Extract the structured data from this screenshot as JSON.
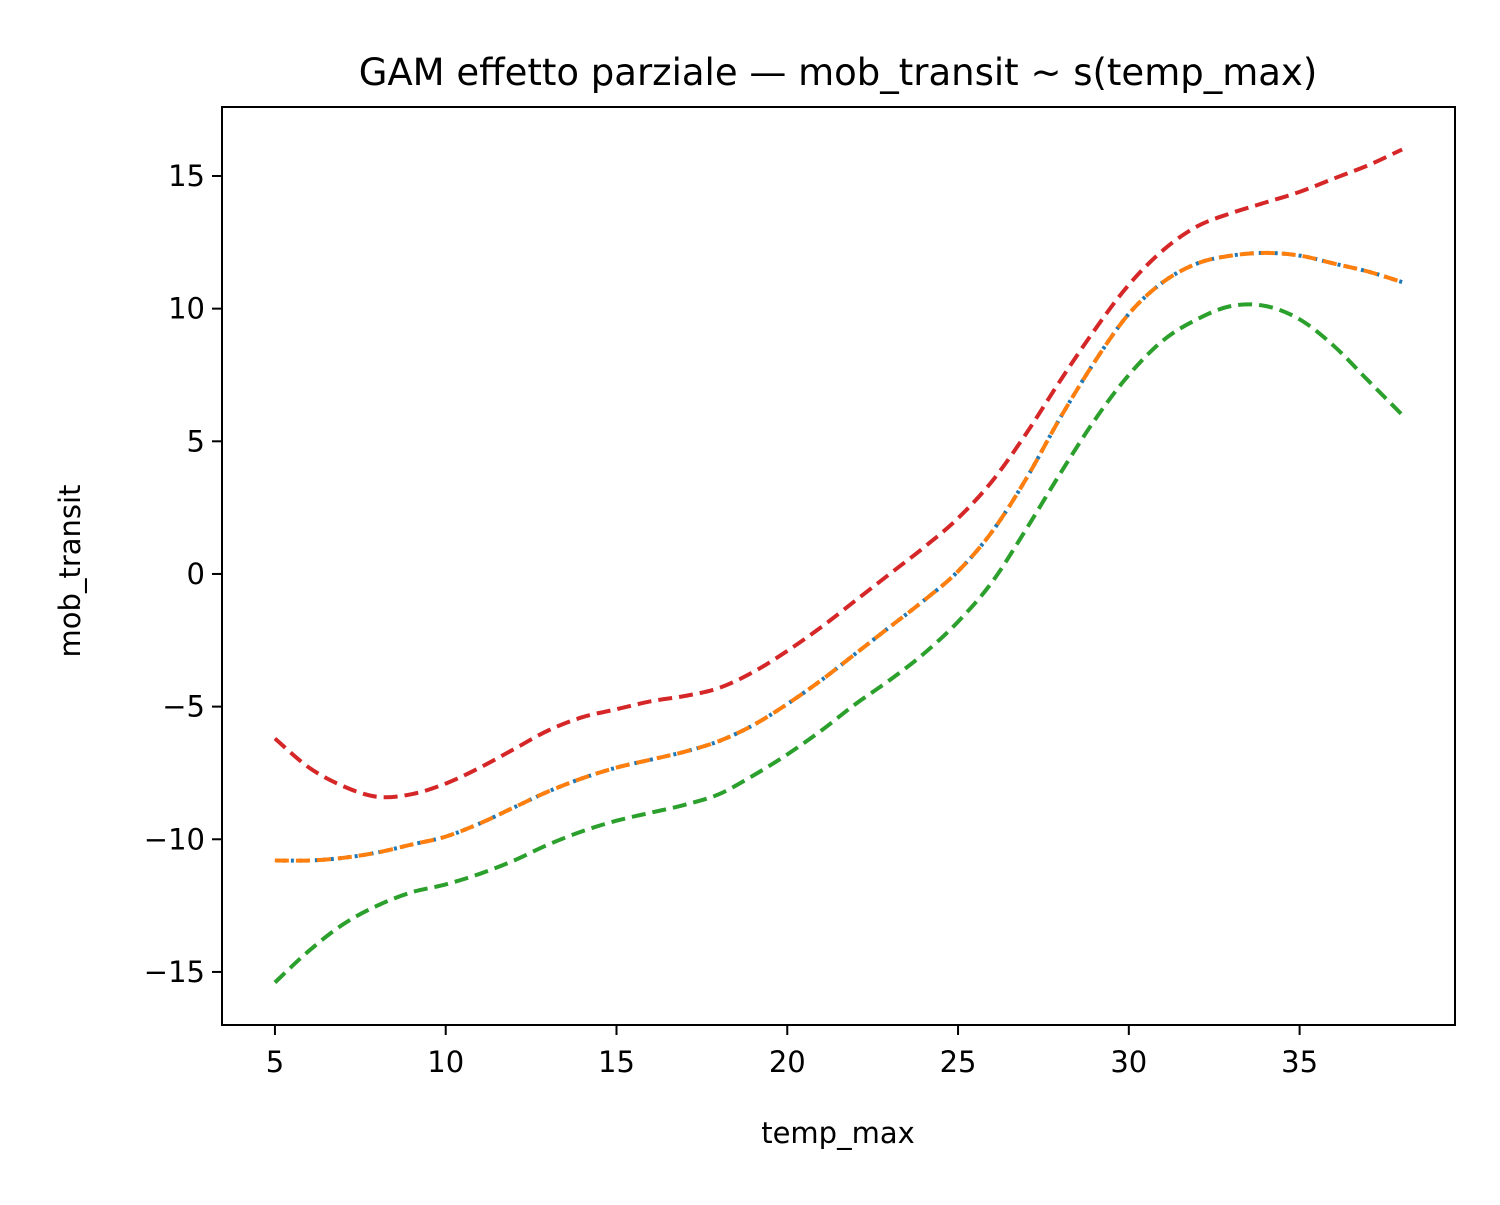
{
  "chart_data": {
    "type": "line",
    "title": "GAM effetto parziale — mob_transit ~ s(temp_max)",
    "xlabel": "temp_max",
    "ylabel": "mob_transit",
    "xlim": [
      3.45,
      39.55
    ],
    "ylim": [
      -17,
      17.6
    ],
    "xticks": [
      5,
      10,
      15,
      20,
      25,
      30,
      35
    ],
    "yticks": [
      -15,
      -10,
      -5,
      0,
      5,
      10,
      15
    ],
    "xtick_labels": [
      "5",
      "10",
      "15",
      "20",
      "25",
      "30",
      "35"
    ],
    "ytick_labels": [
      "−15",
      "−10",
      "−5",
      "0",
      "5",
      "10",
      "15"
    ],
    "grid": false,
    "legend": "none",
    "x": [
      5,
      6,
      7,
      8,
      9,
      10,
      11,
      12,
      13,
      14,
      15,
      16,
      17,
      18,
      19,
      20,
      21,
      22,
      23,
      24,
      25,
      26,
      27,
      28,
      29,
      30,
      31,
      32,
      33,
      34,
      35,
      36,
      37,
      38
    ],
    "series": [
      {
        "color": "#1f77b4",
        "style": "dotted",
        "values": [
          -10.8,
          -10.8,
          -10.7,
          -10.5,
          -10.2,
          -9.9,
          -9.4,
          -8.8,
          -8.2,
          -7.7,
          -7.3,
          -7.0,
          -6.7,
          -6.3,
          -5.7,
          -4.9,
          -4.0,
          -3.0,
          -2.0,
          -1.0,
          0.1,
          1.6,
          3.6,
          5.9,
          8.0,
          9.8,
          11.0,
          11.7,
          12.0,
          12.1,
          12.0,
          11.7,
          11.4,
          11.0
        ]
      },
      {
        "color": "#ff7f0e",
        "style": "dashed",
        "values": [
          -10.8,
          -10.8,
          -10.7,
          -10.5,
          -10.2,
          -9.9,
          -9.4,
          -8.8,
          -8.2,
          -7.7,
          -7.3,
          -7.0,
          -6.7,
          -6.3,
          -5.7,
          -4.9,
          -4.0,
          -3.0,
          -2.0,
          -1.0,
          0.1,
          1.6,
          3.6,
          5.9,
          8.0,
          9.8,
          11.0,
          11.7,
          12.0,
          12.1,
          12.0,
          11.7,
          11.4,
          11.0
        ]
      },
      {
        "color": "#d62728",
        "style": "dashed",
        "values": [
          -6.2,
          -7.3,
          -8.0,
          -8.4,
          -8.3,
          -7.9,
          -7.3,
          -6.6,
          -5.9,
          -5.4,
          -5.1,
          -4.8,
          -4.6,
          -4.3,
          -3.7,
          -2.9,
          -2.0,
          -1.0,
          -0.0,
          1.0,
          2.1,
          3.5,
          5.3,
          7.3,
          9.2,
          10.9,
          12.2,
          13.1,
          13.6,
          14.0,
          14.4,
          14.9,
          15.4,
          16.0
        ]
      },
      {
        "color": "#2ca02c",
        "style": "dashed",
        "values": [
          -15.4,
          -14.2,
          -13.2,
          -12.5,
          -12.0,
          -11.7,
          -11.3,
          -10.8,
          -10.2,
          -9.7,
          -9.3,
          -9.0,
          -8.7,
          -8.3,
          -7.6,
          -6.8,
          -5.9,
          -4.9,
          -4.0,
          -3.0,
          -1.8,
          -0.3,
          1.7,
          3.8,
          5.8,
          7.5,
          8.8,
          9.6,
          10.1,
          10.1,
          9.6,
          8.6,
          7.3,
          6.0
        ]
      }
    ]
  }
}
